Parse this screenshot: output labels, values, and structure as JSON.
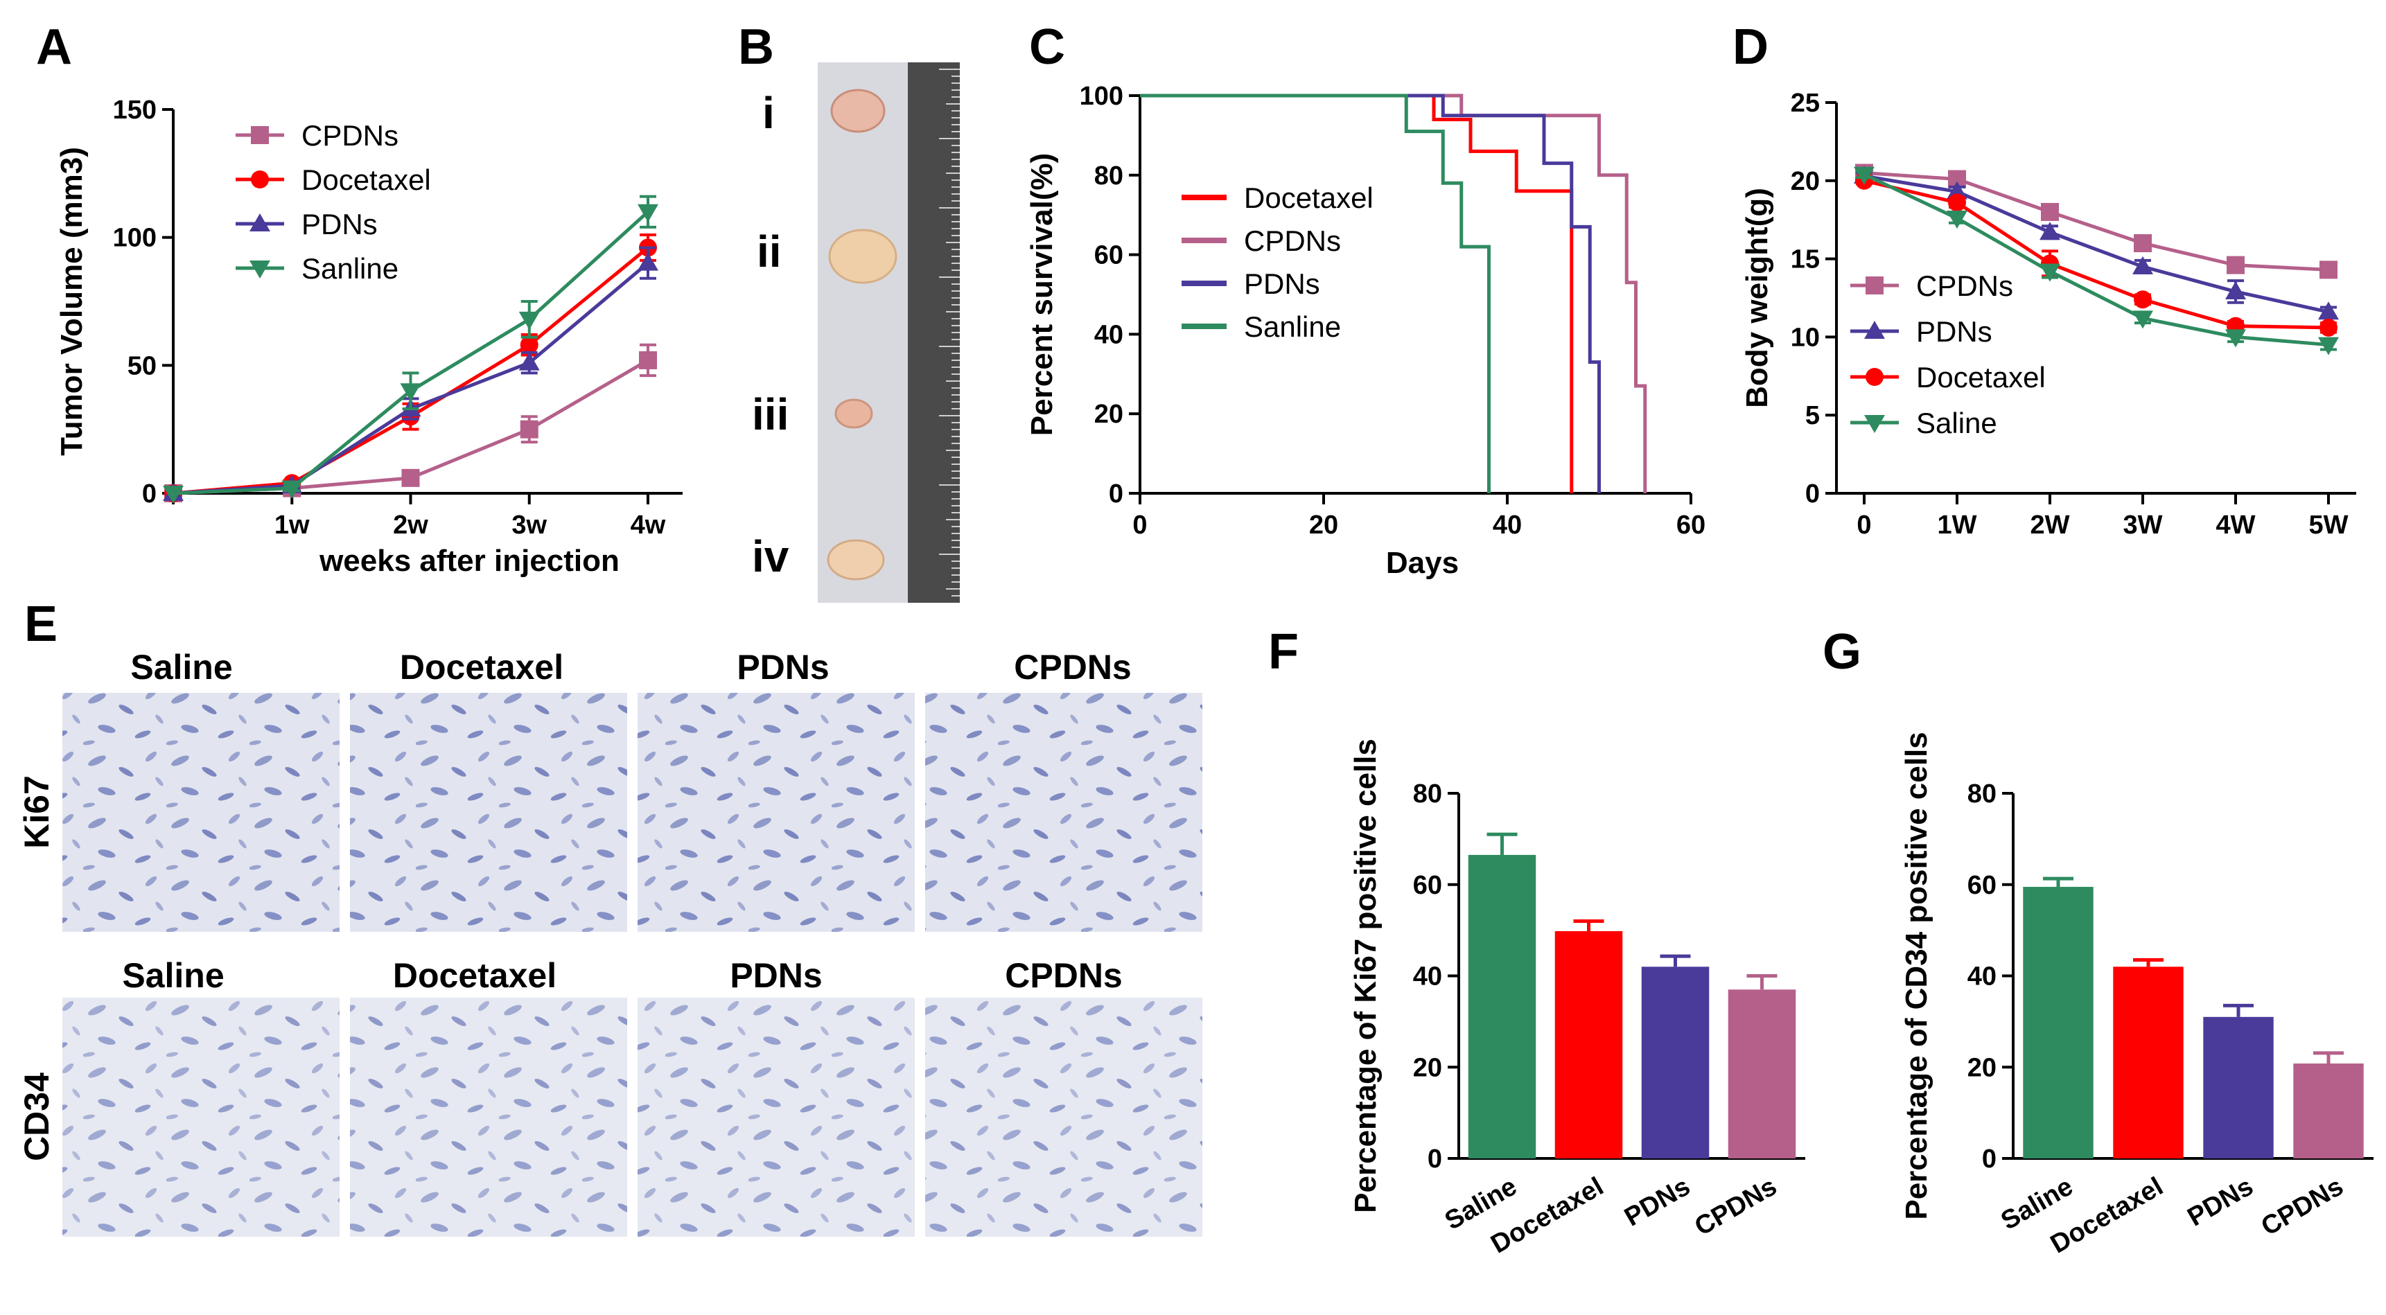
{
  "colors": {
    "cpdns": "#b5608a",
    "docetaxel": "#ff0000",
    "pdns": "#4a3a9a",
    "saline": "#2e8b5f",
    "axis": "#000000",
    "tissue": "#dfe3ee",
    "ruler": "#4a4a4a"
  },
  "panel_letters": [
    "A",
    "B",
    "C",
    "D",
    "E",
    "F",
    "G"
  ],
  "panel_b": {
    "labels": [
      "i",
      "ii",
      "iii",
      "iv"
    ]
  },
  "panel_e": {
    "row_labels": [
      "Ki67",
      "CD34"
    ],
    "ki67_columns": [
      "Saline",
      "Docetaxel",
      "PDNs",
      "CPDNs"
    ],
    "cd34_columns": [
      "Saline",
      "Docetaxel",
      "PDNs",
      "CPDNs"
    ]
  },
  "chart_data": [
    {
      "id": "A",
      "type": "line",
      "title": "",
      "xlabel": "weeks after injection",
      "ylabel": "Tumor Volume (mm3)",
      "x": [
        0,
        1,
        2,
        3,
        4
      ],
      "xtick_labels": [
        "",
        "1w",
        "2w",
        "3w",
        "4w"
      ],
      "ylim": [
        0,
        150
      ],
      "yticks": [
        0,
        50,
        100,
        150
      ],
      "series": [
        {
          "name": "CPDNs",
          "marker": "square",
          "color": "#b5608a",
          "values": [
            0,
            2,
            6,
            25,
            52
          ],
          "errors": [
            0,
            1,
            1,
            5,
            6
          ]
        },
        {
          "name": "Docetaxel",
          "marker": "circle",
          "color": "#ff0000",
          "values": [
            0,
            4,
            30,
            58,
            96
          ],
          "errors": [
            0,
            1,
            5,
            4,
            5
          ]
        },
        {
          "name": "PDNs",
          "marker": "triangle-up",
          "color": "#4a3a9a",
          "values": [
            0,
            3,
            33,
            51,
            90
          ],
          "errors": [
            0,
            1,
            4,
            4,
            6
          ]
        },
        {
          "name": "Sanline",
          "marker": "triangle-down",
          "color": "#2e8b5f",
          "values": [
            0,
            2,
            40,
            68,
            110
          ],
          "errors": [
            0,
            1,
            7,
            7,
            6
          ]
        }
      ],
      "legend": "top-left"
    },
    {
      "id": "C",
      "type": "line",
      "title": "",
      "xlabel": "Days",
      "ylabel": "Percent survival(%)",
      "xlim": [
        0,
        60
      ],
      "xticks": [
        0,
        20,
        40,
        60
      ],
      "ylim": [
        0,
        100
      ],
      "yticks": [
        0,
        20,
        40,
        60,
        80,
        100
      ],
      "series": [
        {
          "name": "Docetaxel",
          "color": "#ff0000",
          "steps": [
            [
              0,
              100
            ],
            [
              32,
              100
            ],
            [
              32,
              94
            ],
            [
              36,
              94
            ],
            [
              36,
              86
            ],
            [
              41,
              86
            ],
            [
              41,
              76
            ],
            [
              47,
              76
            ],
            [
              47,
              0
            ]
          ]
        },
        {
          "name": "CPDNs",
          "color": "#b5608a",
          "steps": [
            [
              0,
              100
            ],
            [
              35,
              100
            ],
            [
              35,
              95
            ],
            [
              50,
              95
            ],
            [
              50,
              80
            ],
            [
              53,
              80
            ],
            [
              53,
              53
            ],
            [
              54,
              53
            ],
            [
              54,
              27
            ],
            [
              55,
              27
            ],
            [
              55,
              0
            ]
          ]
        },
        {
          "name": "PDNs",
          "color": "#4a3a9a",
          "steps": [
            [
              0,
              100
            ],
            [
              33,
              100
            ],
            [
              33,
              95
            ],
            [
              44,
              95
            ],
            [
              44,
              83
            ],
            [
              47,
              83
            ],
            [
              47,
              67
            ],
            [
              49,
              67
            ],
            [
              49,
              33
            ],
            [
              50,
              33
            ],
            [
              50,
              0
            ]
          ]
        },
        {
          "name": "Sanline",
          "color": "#2e8b5f",
          "steps": [
            [
              0,
              100
            ],
            [
              29,
              100
            ],
            [
              29,
              91
            ],
            [
              33,
              91
            ],
            [
              33,
              78
            ],
            [
              35,
              78
            ],
            [
              35,
              62
            ],
            [
              38,
              62
            ],
            [
              38,
              0
            ]
          ]
        }
      ],
      "legend": "center"
    },
    {
      "id": "D",
      "type": "line",
      "title": "",
      "xlabel": "",
      "ylabel": "Body weight(g)",
      "x": [
        0,
        1,
        2,
        3,
        4,
        5
      ],
      "xtick_labels": [
        "0",
        "1W",
        "2W",
        "3W",
        "4W",
        "5W"
      ],
      "ylim": [
        0,
        25
      ],
      "yticks": [
        0,
        5,
        10,
        15,
        20,
        25
      ],
      "series": [
        {
          "name": "CPDNs",
          "marker": "square",
          "color": "#b5608a",
          "values": [
            20.5,
            20.1,
            18.0,
            16.0,
            14.6,
            14.3
          ],
          "errors": [
            0.2,
            0.3,
            0.4,
            0.3,
            0.4,
            0.3
          ]
        },
        {
          "name": "PDNs",
          "marker": "triangle-up",
          "color": "#4a3a9a",
          "values": [
            20.3,
            19.3,
            16.7,
            14.5,
            12.9,
            11.6
          ],
          "errors": [
            0.2,
            0.3,
            0.4,
            0.4,
            0.7,
            0.3
          ]
        },
        {
          "name": "Docetaxel",
          "marker": "circle",
          "color": "#ff0000",
          "values": [
            20.0,
            18.6,
            14.7,
            12.4,
            10.7,
            10.6
          ],
          "errors": [
            0.2,
            0.3,
            0.8,
            0.3,
            0.3,
            0.3
          ]
        },
        {
          "name": "Saline",
          "marker": "triangle-down",
          "color": "#2e8b5f",
          "values": [
            20.4,
            17.6,
            14.2,
            11.2,
            10.0,
            9.5
          ],
          "errors": [
            0.2,
            0.3,
            0.4,
            0.3,
            0.3,
            0.3
          ]
        }
      ],
      "legend": "left"
    },
    {
      "id": "F",
      "type": "bar",
      "title": "",
      "xlabel": "",
      "ylabel": "Percentage of Ki67 positive cells",
      "categories": [
        "Saline",
        "Docetaxel",
        "PDNs",
        "CPDNs"
      ],
      "values": [
        66.5,
        49.8,
        42.0,
        37.0
      ],
      "errors": [
        4.5,
        2.2,
        2.3,
        3.0
      ],
      "colors": [
        "#2e8b5f",
        "#ff0000",
        "#4a3a9a",
        "#b5608a"
      ],
      "ylim": [
        0,
        80
      ],
      "yticks": [
        0,
        20,
        40,
        60,
        80
      ]
    },
    {
      "id": "G",
      "type": "bar",
      "title": "",
      "xlabel": "",
      "ylabel": "Percentage of CD34 positive cells",
      "categories": [
        "Saline",
        "Docetaxel",
        "PDNs",
        "CPDNs"
      ],
      "values": [
        59.5,
        42.0,
        31.0,
        20.8
      ],
      "errors": [
        1.8,
        1.5,
        2.5,
        2.3
      ],
      "colors": [
        "#2e8b5f",
        "#ff0000",
        "#4a3a9a",
        "#b5608a"
      ],
      "ylim": [
        0,
        80
      ],
      "yticks": [
        0,
        20,
        40,
        60,
        80
      ]
    }
  ]
}
